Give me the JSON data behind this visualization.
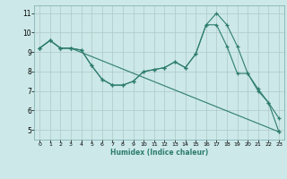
{
  "xlabel": "Humidex (Indice chaleur)",
  "background_color": "#cce8e8",
  "grid_color": "#b0c8c8",
  "line_color": "#2e7d6e",
  "xlim": [
    -0.5,
    23.5
  ],
  "ylim": [
    4.5,
    11.4
  ],
  "xticks": [
    0,
    1,
    2,
    3,
    4,
    5,
    6,
    7,
    8,
    9,
    10,
    11,
    12,
    13,
    14,
    15,
    16,
    17,
    18,
    19,
    20,
    21,
    22,
    23
  ],
  "yticks": [
    5,
    6,
    7,
    8,
    9,
    10,
    11
  ],
  "line1_x": [
    0,
    1,
    2,
    3,
    4,
    5,
    6,
    7,
    8,
    9,
    10,
    11,
    12,
    13,
    14,
    15,
    16,
    17,
    18,
    19,
    20,
    21,
    22,
    23
  ],
  "line1_y": [
    9.2,
    9.6,
    9.2,
    9.2,
    9.1,
    8.3,
    7.6,
    7.3,
    7.3,
    7.5,
    8.0,
    8.1,
    8.2,
    8.5,
    8.2,
    8.9,
    10.4,
    11.0,
    10.4,
    9.3,
    7.9,
    7.1,
    6.4,
    5.6
  ],
  "line2_x": [
    0,
    1,
    2,
    3,
    23
  ],
  "line2_y": [
    9.2,
    9.6,
    9.2,
    9.2,
    4.9
  ],
  "line3_x": [
    0,
    1,
    2,
    3,
    4,
    5,
    6,
    7,
    8,
    9,
    10,
    11,
    12,
    13,
    14,
    15,
    16,
    17,
    18,
    19,
    20,
    21,
    22,
    23
  ],
  "line3_y": [
    9.2,
    9.6,
    9.2,
    9.2,
    9.1,
    8.3,
    7.6,
    7.3,
    7.3,
    7.5,
    8.0,
    8.1,
    8.2,
    8.5,
    8.2,
    8.9,
    10.4,
    10.4,
    9.3,
    7.9,
    7.9,
    7.0,
    6.4,
    4.9
  ]
}
